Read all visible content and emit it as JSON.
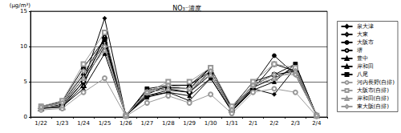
{
  "chart_data": {
    "type": "line",
    "title": "NO₃⁻濃度",
    "y_label": "(μg/m³)",
    "categories": [
      "1/22",
      "1/23",
      "1/24",
      "1/25",
      "1/26",
      "1/27",
      "1/28",
      "1/29",
      "1/30",
      "1/31",
      "2/1",
      "2/2",
      "2/3",
      "2/4"
    ],
    "ylim": [
      0,
      15
    ],
    "yticks": [
      0,
      5,
      10,
      15
    ],
    "grid": true,
    "legend": "right",
    "series": [
      {
        "name": "泉大津",
        "color": "#000000",
        "marker": "diamond",
        "line_style": "solid",
        "values": [
          1.3,
          1.5,
          5.0,
          14.0,
          0.2,
          3.0,
          3.5,
          2.3,
          5.5,
          0.8,
          4.0,
          3.2,
          7.0,
          0.2
        ]
      },
      {
        "name": "大東",
        "color": "#000000",
        "marker": "emptyDiamond",
        "line_style": "solid",
        "values": [
          1.2,
          1.8,
          5.5,
          10.5,
          0.2,
          3.5,
          4.0,
          3.5,
          6.5,
          1.0,
          4.5,
          6.0,
          6.5,
          0.2
        ]
      },
      {
        "name": "大阪市",
        "color": "#000000",
        "marker": "circle",
        "line_style": "solid",
        "values": [
          1.4,
          2.0,
          6.0,
          11.0,
          0.2,
          3.8,
          4.2,
          4.0,
          7.0,
          1.2,
          4.5,
          8.7,
          6.0,
          0.2
        ]
      },
      {
        "name": "堺",
        "color": "#000000",
        "marker": "emptyCircle",
        "line_style": "solid",
        "values": [
          1.2,
          1.6,
          5.0,
          10.0,
          0.2,
          3.0,
          3.8,
          3.5,
          6.0,
          0.9,
          4.0,
          7.5,
          6.5,
          0.2
        ]
      },
      {
        "name": "豊中",
        "color": "#000000",
        "marker": "triangle",
        "line_style": "solid",
        "values": [
          1.3,
          1.5,
          4.0,
          9.0,
          0.2,
          2.8,
          3.5,
          3.0,
          5.5,
          0.8,
          3.8,
          5.0,
          7.5,
          0.2
        ]
      },
      {
        "name": "岸和田",
        "color": "#000000",
        "marker": "emptyTriangle",
        "line_style": "solid",
        "values": [
          1.2,
          1.4,
          4.5,
          11.5,
          0.2,
          3.2,
          4.5,
          4.5,
          6.5,
          1.0,
          4.2,
          5.5,
          7.0,
          0.2
        ]
      },
      {
        "name": "八尾",
        "color": "#000000",
        "marker": "rect",
        "line_style": "solid",
        "values": [
          1.5,
          2.2,
          7.0,
          11.0,
          0.2,
          4.0,
          4.5,
          4.5,
          7.0,
          1.3,
          5.0,
          6.0,
          7.5,
          0.2
        ]
      },
      {
        "name": "河内長野(自排)",
        "color": "#999999",
        "marker": "emptyCircle",
        "line_style": "solid",
        "values": [
          1.0,
          1.2,
          3.5,
          5.5,
          0.1,
          2.0,
          3.0,
          2.0,
          3.2,
          0.5,
          3.5,
          4.0,
          3.5,
          0.1
        ]
      },
      {
        "name": "大阪市(自排)",
        "color": "#999999",
        "marker": "emptyRect",
        "line_style": "solid",
        "values": [
          1.5,
          2.3,
          7.5,
          12.0,
          0.2,
          3.5,
          5.0,
          5.0,
          7.0,
          1.5,
          5.0,
          7.5,
          7.0,
          0.2
        ]
      },
      {
        "name": "岸和田(自排)",
        "color": "#999999",
        "marker": "emptyTriangle",
        "line_style": "solid",
        "values": [
          1.3,
          1.6,
          5.5,
          9.5,
          0.2,
          3.5,
          4.0,
          4.0,
          6.0,
          1.0,
          4.5,
          5.5,
          6.5,
          0.2
        ]
      },
      {
        "name": "東大阪(自排)",
        "color": "#999999",
        "marker": "emptyDiamond",
        "line_style": "solid",
        "values": [
          1.4,
          2.0,
          6.5,
          10.0,
          0.2,
          3.5,
          4.5,
          4.0,
          6.5,
          1.0,
          4.5,
          6.0,
          6.0,
          0.2
        ]
      }
    ]
  }
}
